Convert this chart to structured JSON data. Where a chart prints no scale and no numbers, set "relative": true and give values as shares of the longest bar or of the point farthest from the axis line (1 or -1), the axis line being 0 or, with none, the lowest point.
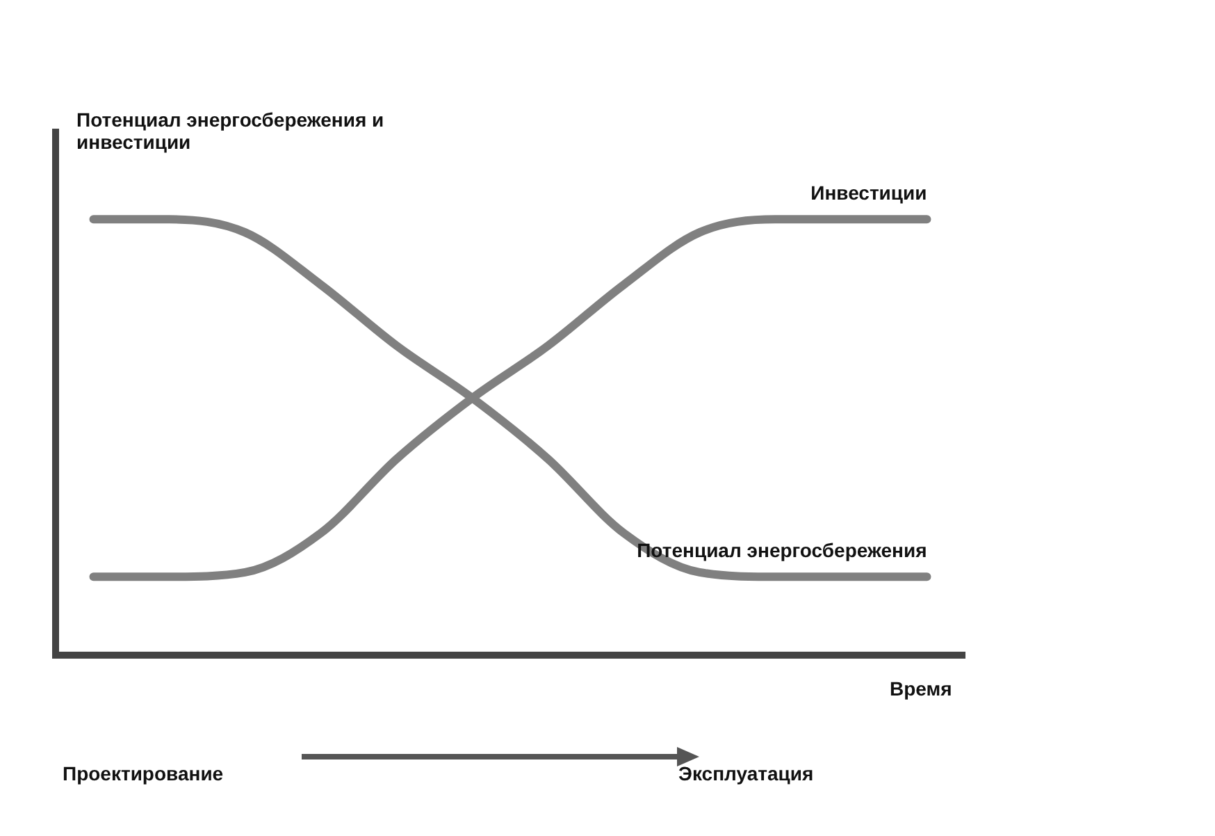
{
  "chart_data": {
    "type": "line",
    "relative": true,
    "ylabel": "Потенциал энергосбережения и инвестиции",
    "xlabel": "Время",
    "categories": [
      null,
      null,
      null,
      null,
      null,
      null,
      null,
      null,
      null,
      null,
      null,
      null
    ],
    "series": [
      {
        "name": "Инвестиции",
        "color": "#808080",
        "values": [
          0.18,
          0.18,
          0.19,
          0.28,
          0.45,
          0.59,
          0.71,
          0.85,
          0.97,
          1,
          1,
          1
        ]
      },
      {
        "name": "Потенциал энергосбережения",
        "color": "#808080",
        "values": [
          1,
          1,
          0.97,
          0.85,
          0.71,
          0.59,
          0.45,
          0.28,
          0.19,
          0.18,
          0.18,
          0.18
        ]
      }
    ],
    "annotations": [
      "Проектирование",
      "Эксплуатация"
    ],
    "grid": false,
    "legend": false,
    "marker": "none",
    "line_style": "solid"
  }
}
